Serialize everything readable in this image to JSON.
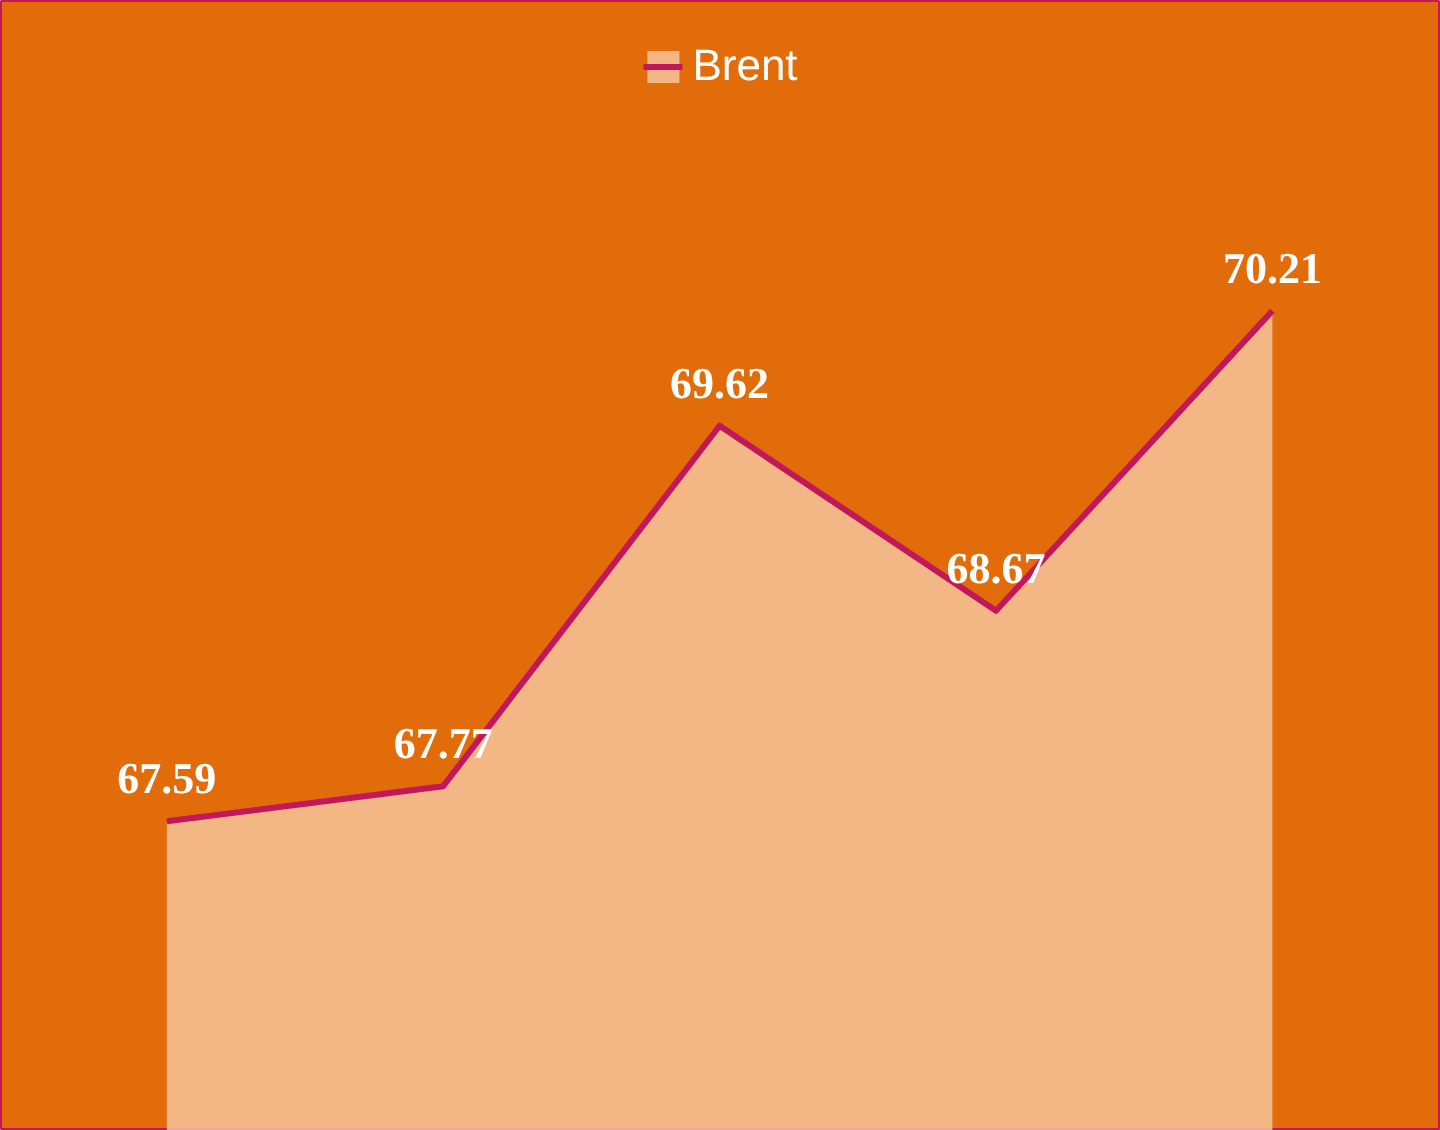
{
  "chart_data": {
    "type": "area",
    "categories": [
      null,
      null,
      null,
      null,
      null
    ],
    "series": [
      {
        "name": "Brent",
        "color": "#c2185b",
        "values": [
          67.59,
          67.77,
          69.62,
          68.67,
          70.21
        ]
      }
    ],
    "ylim": [
      66.0,
      71.8
    ],
    "data_labels": true,
    "legend": "top",
    "grid": false,
    "tick_labels": false
  }
}
